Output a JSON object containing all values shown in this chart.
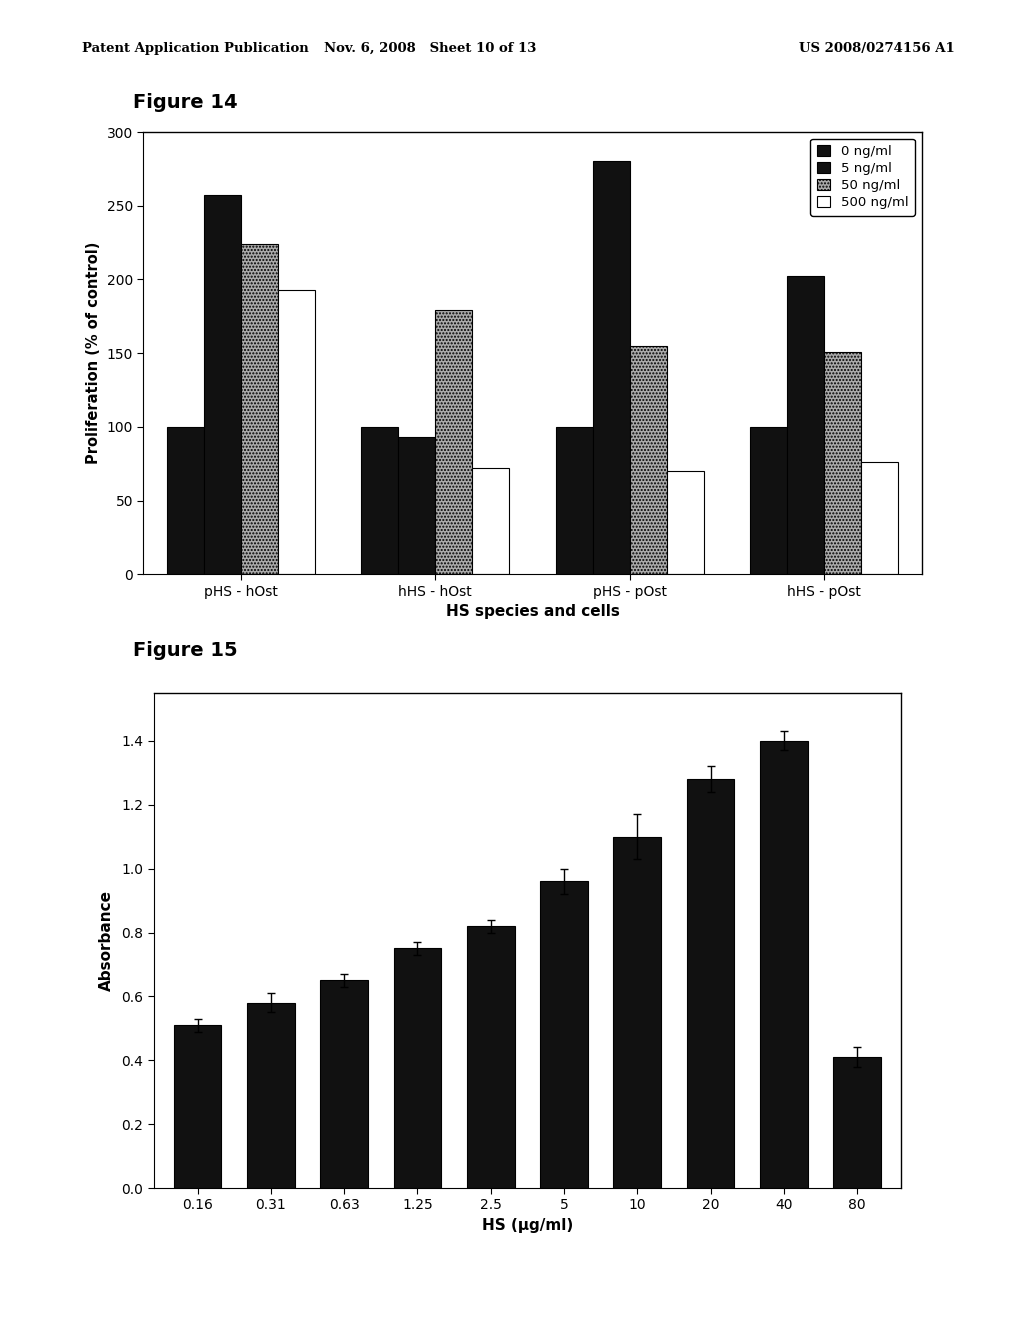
{
  "fig14": {
    "title": "Figure 14",
    "groups": [
      "pHS - hOst",
      "hHS - hOst",
      "pHS - pOst",
      "hHS - pOst"
    ],
    "series_labels": [
      "0 ng/ml",
      "5 ng/ml",
      "50 ng/ml",
      "500 ng/ml"
    ],
    "series_colors": [
      "#111111",
      "#111111",
      "#aaaaaa",
      "#ffffff"
    ],
    "series_hatches": [
      "",
      "",
      ".....",
      ""
    ],
    "values": [
      [
        100,
        257,
        224,
        193
      ],
      [
        100,
        93,
        179,
        72
      ],
      [
        100,
        280,
        155,
        70
      ],
      [
        100,
        202,
        151,
        76
      ]
    ],
    "ylabel": "Proliferation (% of control)",
    "xlabel": "HS species and cells",
    "ylim": [
      0,
      300
    ],
    "yticks": [
      0,
      50,
      100,
      150,
      200,
      250,
      300
    ]
  },
  "fig15": {
    "title": "Figure 15",
    "categories": [
      "0.16",
      "0.31",
      "0.63",
      "1.25",
      "2.5",
      "5",
      "10",
      "20",
      "40",
      "80"
    ],
    "values": [
      0.51,
      0.58,
      0.65,
      0.75,
      0.82,
      0.96,
      1.1,
      1.28,
      1.4,
      0.41
    ],
    "errors": [
      0.02,
      0.03,
      0.02,
      0.02,
      0.02,
      0.04,
      0.07,
      0.04,
      0.03,
      0.03
    ],
    "bar_color": "#111111",
    "ylabel": "Absorbance",
    "xlabel": "HS (μg/ml)",
    "ylim": [
      0,
      1.55
    ],
    "yticks": [
      0,
      0.2,
      0.4,
      0.6,
      0.8,
      1.0,
      1.2,
      1.4
    ]
  },
  "header_left": "Patent Application Publication",
  "header_mid": "Nov. 6, 2008   Sheet 10 of 13",
  "header_right": "US 2008/0274156 A1"
}
